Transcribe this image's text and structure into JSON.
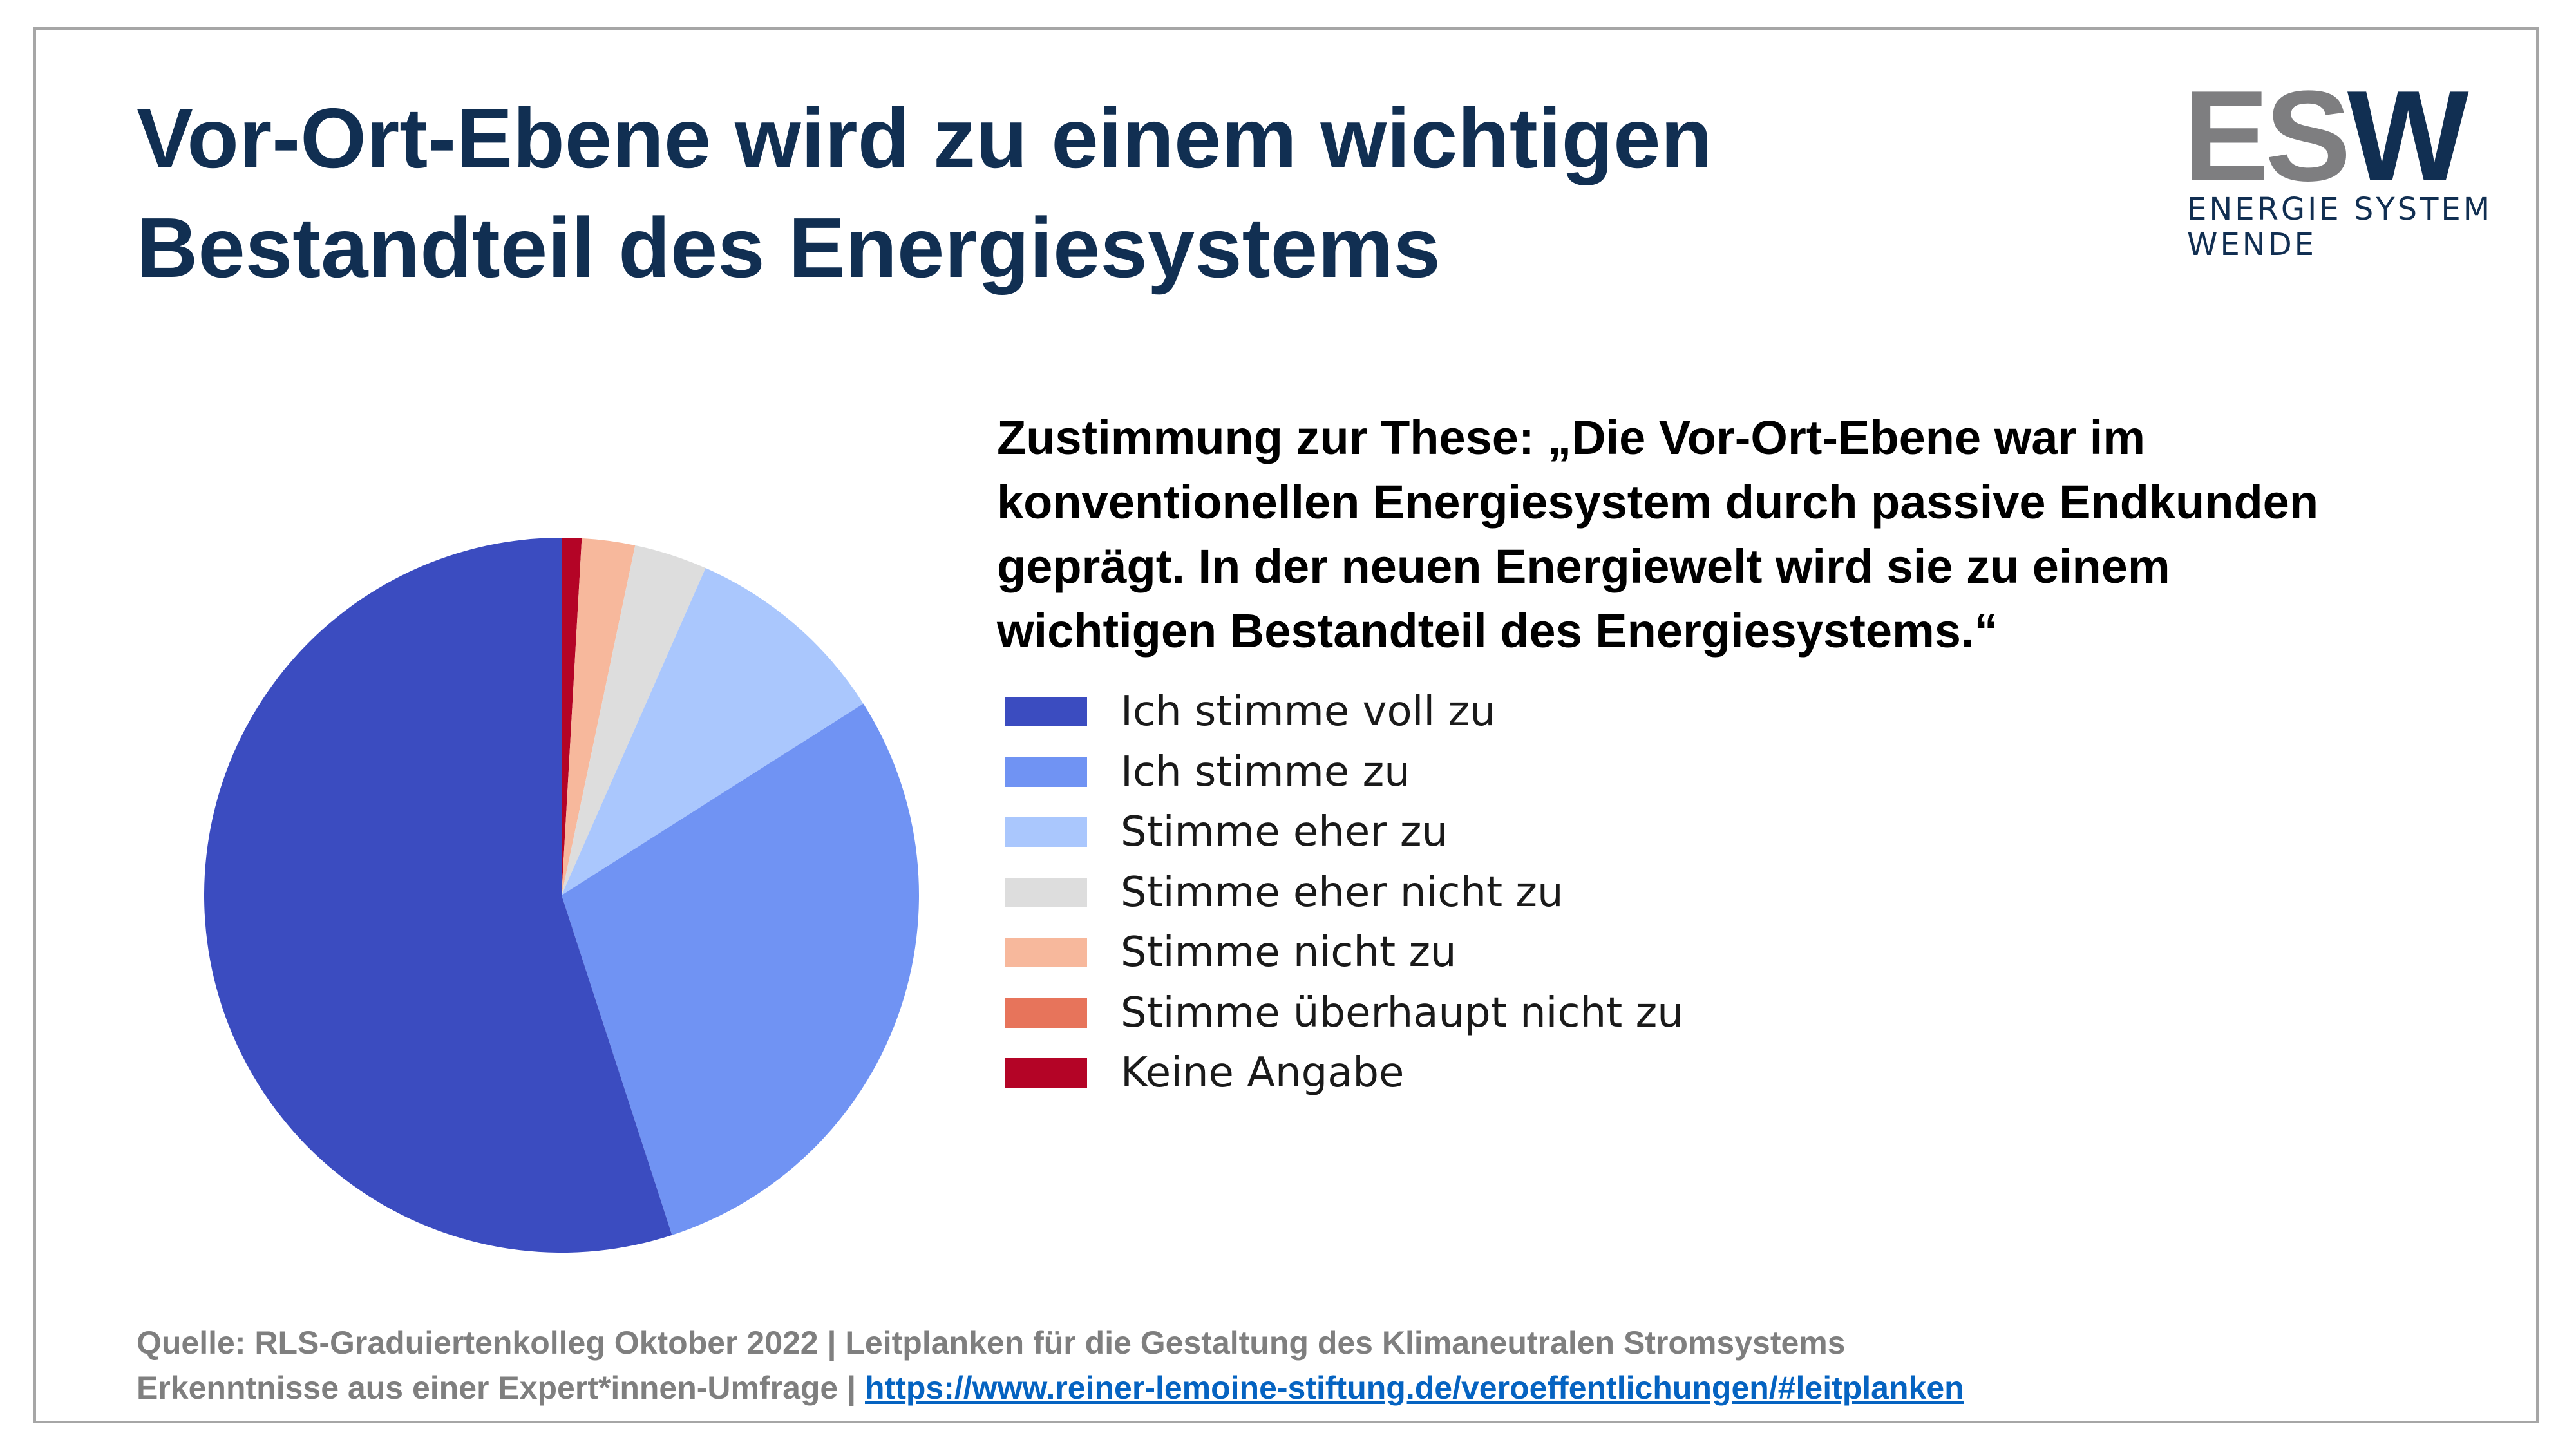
{
  "slide": {
    "title_line1": "Vor-Ort-Ebene wird zu einem wichtigen",
    "title_line2": "Bestandteil des Energiesystems"
  },
  "logo": {
    "letters_es": "ES",
    "letters_w": "W",
    "subtitle_line1": "ENERGIE SYSTEM",
    "subtitle_line2": "WENDE",
    "colors": {
      "grey": "#7e7e80",
      "navy": "#112f52"
    }
  },
  "chart_data": {
    "type": "pie",
    "title_lines": [
      "Zustimmung zur These: „Die Vor-Ort-Ebene war im",
      "konventionellen Energiesystem durch passive Endkunden",
      "geprägt. In der neuen Energiewelt wird sie zu einem",
      "wichtigen Bestandteil des Energiesystems.“"
    ],
    "start_angle": "12 o'clock, clockwise (Keine Angabe first)",
    "legend_position": "right",
    "categories": [
      "Ich stimme voll zu",
      "Ich stimme zu",
      "Stimme eher zu",
      "Stimme eher nicht zu",
      "Stimme nicht zu",
      "Stimme überhaupt nicht zu",
      "Keine Angabe"
    ],
    "values": [
      55.0,
      29.0,
      9.4,
      3.3,
      2.4,
      0.0,
      0.9
    ],
    "colors": [
      "#3b4cc0",
      "#7093f3",
      "#aac7fd",
      "#dddddd",
      "#f7b89c",
      "#e7745b",
      "#b40426"
    ],
    "draw_order": [
      6,
      5,
      4,
      3,
      2,
      1,
      0
    ]
  },
  "footer": {
    "line1": "Quelle: RLS-Graduiertenkolleg Oktober 2022 | Leitplanken für die Gestaltung des Klimaneutralen Stromsystems",
    "line2_prefix": "Erkenntnisse aus einer Expert*innen-Umfrage | ",
    "link": "https://www.reiner-lemoine-stiftung.de/veroeffentlichungen/#leitplanken"
  }
}
